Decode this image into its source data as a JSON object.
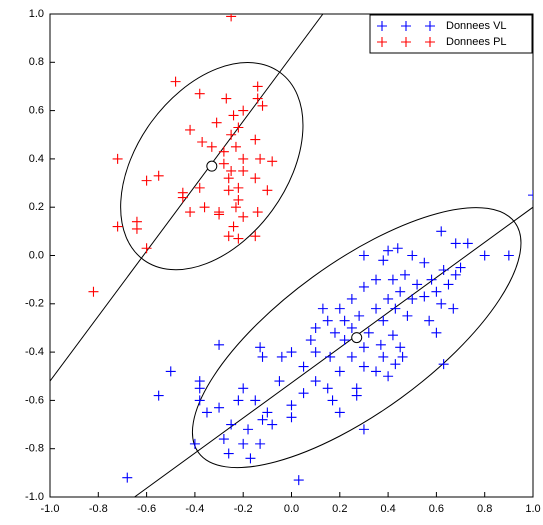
{
  "chart_data": {
    "type": "scatter",
    "xlim": [
      -1,
      1
    ],
    "ylim": [
      -1,
      1
    ],
    "xticks": [
      {
        "value": -1,
        "label": "-1.0"
      },
      -0.8,
      -0.6,
      -0.4,
      -0.2,
      {
        "value": 0,
        "label": "0.0"
      },
      0.2,
      0.4,
      0.6,
      0.8,
      {
        "value": 1,
        "label": "1.0"
      }
    ],
    "yticks": [
      {
        "value": -1,
        "label": "-1.0"
      },
      -0.8,
      -0.6,
      -0.4,
      -0.2,
      {
        "value": 0,
        "label": "0.0"
      },
      0.2,
      0.4,
      0.6,
      0.8,
      {
        "value": 1,
        "label": "1.0"
      }
    ],
    "legend": "upper right",
    "series": [
      {
        "name": "Donnees VL",
        "color": "#0000ff",
        "x": [
          0.62,
          0.68,
          0.73,
          0.8,
          0.9,
          0.44,
          0.4,
          0.3,
          0.38,
          0.5,
          0.55,
          0.63,
          0.68,
          0.47,
          0.42,
          0.35,
          0.52,
          0.58,
          0.65,
          0.7,
          0.45,
          0.4,
          0.5,
          0.55,
          0.6,
          0.62,
          0.3,
          0.25,
          0.2,
          0.35,
          0.43,
          0.48,
          0.57,
          0.67,
          0.13,
          0.15,
          0.22,
          0.28,
          0.38,
          0.1,
          0.18,
          0.25,
          0.32,
          0.42,
          0.6,
          0.08,
          0.22,
          0.37,
          0.45,
          0.3,
          0,
          0.1,
          0.16,
          0.25,
          0.38,
          0.46,
          -0.12,
          -0.04,
          0.3,
          0.43,
          0.63,
          -0.3,
          -0.13,
          0.05,
          0.2,
          0.35,
          -0.05,
          0.1,
          0.15,
          0.27,
          0.4,
          -0.5,
          -0.38,
          -0.38,
          -0.2,
          0.05,
          0.17,
          -0.55,
          -0.38,
          -0.22,
          -0.15,
          0.27,
          -0.3,
          -0.1,
          0,
          0.2,
          -0.35,
          -0.12,
          0,
          -0.25,
          -0.18,
          -0.4,
          -0.28,
          -0.08,
          0.3,
          -0.2,
          -0.26,
          -0.17,
          -0.13,
          -0.68,
          0.03,
          1
        ],
        "y": [
          0.1,
          0.05,
          0.05,
          0,
          0,
          0.03,
          0.02,
          0,
          -0.02,
          0,
          -0.03,
          -0.06,
          -0.08,
          -0.08,
          -0.1,
          -0.1,
          -0.12,
          -0.1,
          -0.12,
          -0.05,
          -0.15,
          -0.18,
          -0.18,
          -0.17,
          -0.15,
          -0.2,
          -0.13,
          -0.18,
          -0.22,
          -0.22,
          -0.22,
          -0.25,
          -0.27,
          -0.22,
          -0.22,
          -0.27,
          -0.27,
          -0.25,
          -0.27,
          -0.3,
          -0.32,
          -0.3,
          -0.32,
          -0.33,
          -0.32,
          -0.35,
          -0.35,
          -0.37,
          -0.38,
          -0.38,
          -0.4,
          -0.4,
          -0.42,
          -0.42,
          -0.42,
          -0.42,
          -0.42,
          -0.42,
          -0.46,
          -0.45,
          -0.45,
          -0.37,
          -0.38,
          -0.46,
          -0.48,
          -0.48,
          -0.52,
          -0.52,
          -0.55,
          -0.55,
          -0.5,
          -0.48,
          -0.52,
          -0.55,
          -0.55,
          -0.57,
          -0.6,
          -0.58,
          -0.6,
          -0.6,
          -0.6,
          -0.58,
          -0.63,
          -0.65,
          -0.62,
          -0.65,
          -0.65,
          -0.68,
          -0.67,
          -0.7,
          -0.72,
          -0.78,
          -0.76,
          -0.7,
          -0.72,
          -0.78,
          -0.82,
          -0.84,
          -0.78,
          -0.92,
          -0.93,
          0.25
        ]
      },
      {
        "name": "Donnees PL",
        "color": "#ff0000",
        "x": [
          -0.25,
          -0.48,
          -0.38,
          -0.14,
          -0.14,
          -0.27,
          -0.2,
          -0.24,
          -0.12,
          -0.31,
          -0.22,
          -0.25,
          -0.42,
          -0.37,
          -0.23,
          -0.15,
          -0.28,
          -0.2,
          -0.33,
          -0.72,
          -0.13,
          -0.08,
          -0.28,
          -0.25,
          -0.2,
          -0.55,
          -0.6,
          -0.26,
          -0.15,
          -0.38,
          -0.45,
          -0.45,
          -0.22,
          -0.26,
          -0.1,
          -0.22,
          -0.36,
          -0.3,
          -0.23,
          -0.42,
          -0.3,
          -0.64,
          -0.64,
          -0.72,
          -0.2,
          -0.14,
          -0.26,
          -0.22,
          -0.15,
          -0.6,
          -0.82,
          -0.24
        ],
        "y": [
          0.99,
          0.72,
          0.67,
          0.7,
          0.65,
          0.65,
          0.6,
          0.58,
          0.62,
          0.55,
          0.53,
          0.5,
          0.52,
          0.47,
          0.45,
          0.48,
          0.43,
          0.4,
          0.45,
          0.4,
          0.4,
          0.39,
          0.38,
          0.35,
          0.35,
          0.33,
          0.31,
          0.32,
          0.32,
          0.28,
          0.26,
          0.24,
          0.28,
          0.27,
          0.27,
          0.23,
          0.2,
          0.18,
          0.2,
          0.18,
          0.17,
          0.14,
          0.11,
          0.12,
          0.16,
          0.18,
          0.08,
          0.07,
          0.08,
          0.03,
          -0.15,
          0.12
        ]
      }
    ],
    "ellipses": [
      {
        "center": [
          0.27,
          -0.34
        ],
        "radii": [
          0.81,
          0.31
        ],
        "angle": 36
      },
      {
        "center": [
          -0.33,
          0.37
        ],
        "radii": [
          0.48,
          0.31
        ],
        "angle": 54
      }
    ],
    "lines": [
      {
        "x": [
          -0.65,
          1
        ],
        "y": [
          -1,
          0.2
        ]
      },
      {
        "x": [
          -1,
          0.13
        ],
        "y": [
          -0.52,
          1
        ]
      }
    ]
  }
}
